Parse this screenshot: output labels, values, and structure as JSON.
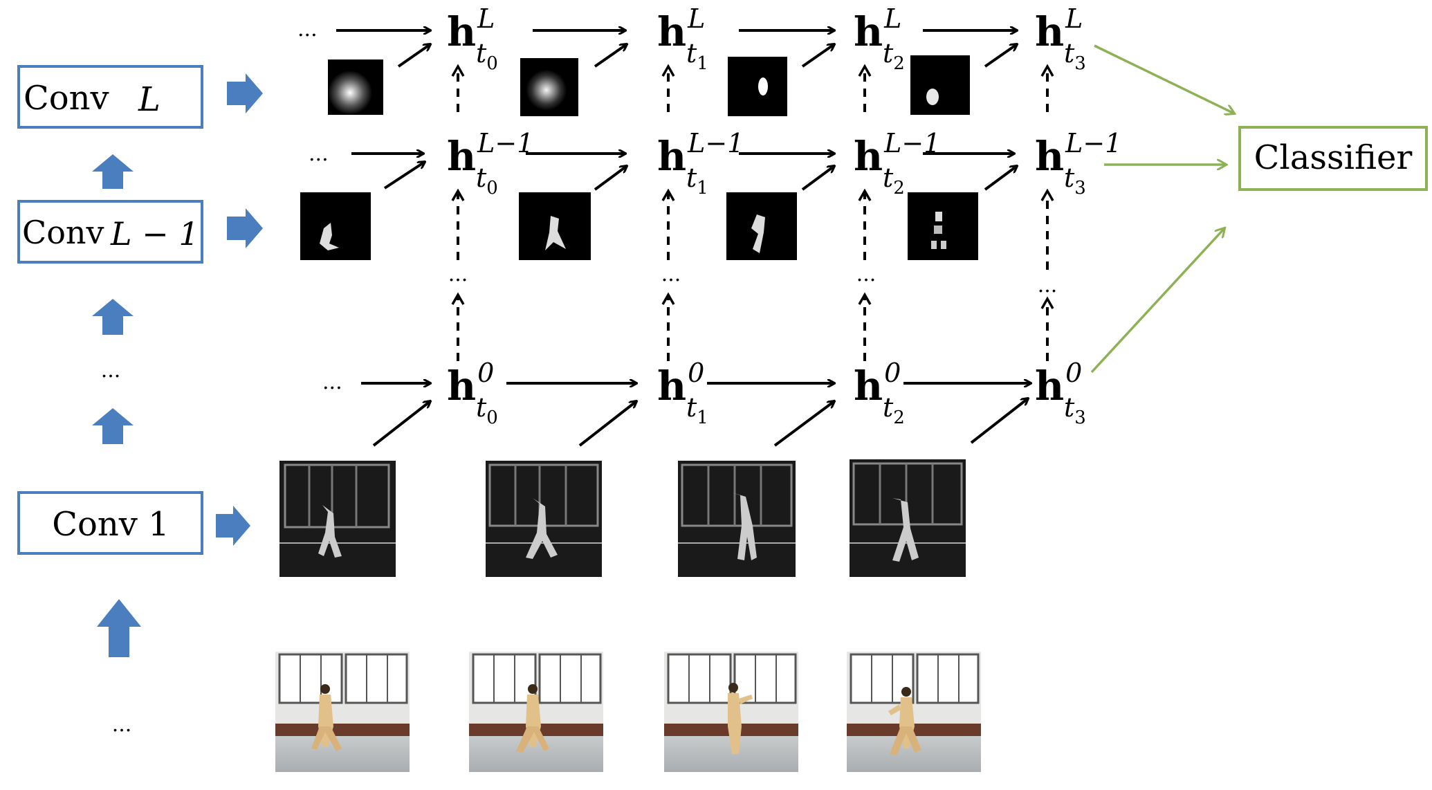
{
  "layers": {
    "top": "Conv",
    "top_index": "L",
    "mid": "Conv",
    "mid_index": "L − 1",
    "first": "Conv 1"
  },
  "hidden_rows": {
    "top_superscript": "L",
    "mid_superscript": "L−1",
    "bottom_superscript": "0"
  },
  "hidden_symbol": "h",
  "time_symbol": "t",
  "time_indices": [
    "0",
    "1",
    "2",
    "3"
  ],
  "classifier": "Classifier",
  "ellipsis": "...",
  "colors": {
    "layer_box": "#4a7ebf",
    "layer_arrow": "#4a7ebf",
    "classifier": "#8db255",
    "classifier_arrows": "#8db255",
    "arrows": "#000000"
  }
}
